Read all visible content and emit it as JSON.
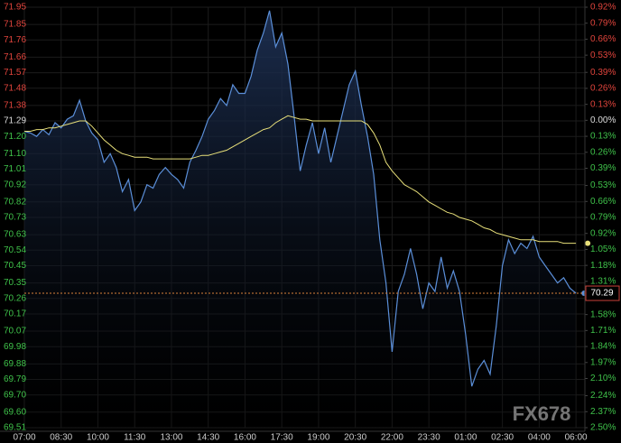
{
  "chart_data": {
    "type": "line",
    "categories": [
      "07:00",
      null,
      null,
      null,
      null,
      null,
      "08:30",
      null,
      null,
      null,
      null,
      null,
      "10:00",
      null,
      null,
      null,
      null,
      null,
      "11:30",
      null,
      null,
      null,
      null,
      null,
      "13:00",
      null,
      null,
      null,
      null,
      null,
      "14:30",
      null,
      null,
      null,
      null,
      null,
      "16:00",
      null,
      null,
      null,
      null,
      null,
      "17:30",
      null,
      null,
      null,
      null,
      null,
      "19:00",
      null,
      null,
      null,
      null,
      null,
      "20:30",
      null,
      null,
      null,
      null,
      null,
      "22:00",
      null,
      null,
      null,
      null,
      null,
      "23:30",
      null,
      null,
      null,
      null,
      null,
      "01:00",
      null,
      null,
      null,
      null,
      null,
      "02:30",
      null,
      null,
      null,
      null,
      null,
      "04:00",
      null,
      null,
      null,
      null,
      null,
      "06:00"
    ],
    "series": [
      {
        "color": "#5b8fd9",
        "fill": true,
        "values": [
          71.23,
          71.22,
          71.2,
          71.24,
          71.21,
          71.28,
          71.25,
          71.3,
          71.32,
          71.41,
          71.29,
          71.22,
          71.18,
          71.05,
          71.1,
          71.02,
          70.88,
          70.95,
          70.77,
          70.82,
          70.92,
          70.9,
          70.98,
          71.02,
          70.98,
          70.95,
          70.9,
          71.05,
          71.12,
          71.2,
          71.3,
          71.35,
          71.42,
          71.38,
          71.5,
          71.45,
          71.45,
          71.55,
          71.7,
          71.8,
          71.93,
          71.72,
          71.8,
          71.62,
          71.32,
          71.0,
          71.15,
          71.28,
          71.1,
          71.25,
          71.05,
          71.2,
          71.35,
          71.5,
          71.58,
          71.38,
          71.2,
          70.98,
          70.6,
          70.35,
          69.95,
          70.3,
          70.4,
          70.55,
          70.4,
          70.2,
          70.35,
          70.3,
          70.5,
          70.32,
          70.42,
          70.3,
          70.05,
          69.75,
          69.85,
          69.9,
          69.82,
          70.1,
          70.45,
          70.6,
          70.52,
          70.58,
          70.55,
          70.62,
          70.5,
          70.45,
          70.4,
          70.35,
          70.38,
          70.32,
          70.29
        ]
      },
      {
        "color": "#e8e07a",
        "fill": false,
        "values": [
          71.23,
          71.23,
          71.24,
          71.24,
          71.25,
          71.25,
          71.26,
          71.27,
          71.28,
          71.29,
          71.29,
          71.26,
          71.22,
          71.18,
          71.15,
          71.12,
          71.1,
          71.09,
          71.08,
          71.08,
          71.08,
          71.07,
          71.07,
          71.07,
          71.07,
          71.07,
          71.07,
          71.07,
          71.08,
          71.09,
          71.09,
          71.1,
          71.11,
          71.12,
          71.14,
          71.16,
          71.18,
          71.2,
          71.22,
          71.24,
          71.25,
          71.28,
          71.3,
          71.32,
          71.31,
          71.3,
          71.3,
          71.29,
          71.29,
          71.29,
          71.29,
          71.29,
          71.29,
          71.29,
          71.29,
          71.29,
          71.27,
          71.22,
          71.15,
          71.05,
          71.0,
          70.96,
          70.92,
          70.9,
          70.88,
          70.85,
          70.82,
          70.8,
          70.78,
          70.76,
          70.75,
          70.73,
          70.72,
          70.71,
          70.69,
          70.67,
          70.66,
          70.64,
          70.63,
          70.62,
          70.61,
          70.6,
          70.6,
          70.6,
          70.59,
          70.59,
          70.59,
          70.59,
          70.58,
          70.58,
          70.58
        ]
      }
    ],
    "ylim": [
      69.51,
      71.95
    ],
    "yticks": [
      71.95,
      71.85,
      71.76,
      71.66,
      71.57,
      71.48,
      71.38,
      71.29,
      {
        "value": 71.2,
        "label": "71.20"
      },
      {
        "value": 71.1,
        "label": "71.10"
      },
      71.01,
      70.92,
      70.82,
      70.73,
      70.63,
      70.54,
      70.45,
      70.35,
      70.26,
      70.17,
      70.07,
      69.98,
      69.88,
      69.79,
      {
        "value": 69.7,
        "label": "69.70"
      },
      {
        "value": 69.6,
        "label": "69.60"
      },
      69.51
    ],
    "y2lim": [
      -2.5,
      0.92
    ],
    "y2ticks": [
      {
        "value": 0.92,
        "label": "0.92%"
      },
      {
        "value": 0.79,
        "label": "0.79%"
      },
      {
        "value": 0.66,
        "label": "0.66%"
      },
      {
        "value": 0.53,
        "label": "0.53%"
      },
      {
        "value": 0.39,
        "label": "0.39%"
      },
      {
        "value": 0.26,
        "label": "0.26%"
      },
      {
        "value": 0.13,
        "label": "0.13%"
      },
      {
        "value": 0,
        "label": "0.00%"
      },
      {
        "value": -0.13,
        "label": "0.13%"
      },
      {
        "value": -0.26,
        "label": "0.26%"
      },
      {
        "value": -0.39,
        "label": "0.39%"
      },
      {
        "value": -0.53,
        "label": "0.53%"
      },
      {
        "value": -0.66,
        "label": "0.66%"
      },
      {
        "value": -0.79,
        "label": "0.79%"
      },
      {
        "value": -0.92,
        "label": "0.92%"
      },
      {
        "value": -1.05,
        "label": "1.05%"
      },
      {
        "value": -1.18,
        "label": "1.18%"
      },
      {
        "value": -1.31,
        "label": "1.31%"
      },
      {
        "value": -1.58,
        "label": "1.58%"
      },
      {
        "value": -1.71,
        "label": "1.71%"
      },
      {
        "value": -1.84,
        "label": "1.84%"
      },
      {
        "value": -1.97,
        "label": "1.97%"
      },
      {
        "value": -2.1,
        "label": "2.10%"
      },
      {
        "value": -2.24,
        "label": "2.24%"
      },
      {
        "value": -2.37,
        "label": "2.37%"
      },
      {
        "value": -2.5,
        "label": "2.50%"
      }
    ],
    "last_price": 70.29,
    "last_price_color": "#d9813a",
    "grid": true,
    "up_color": "#e0443c",
    "down_color": "#3fc24a",
    "flat_color": "#dddddd",
    "watermark": "FX678"
  }
}
